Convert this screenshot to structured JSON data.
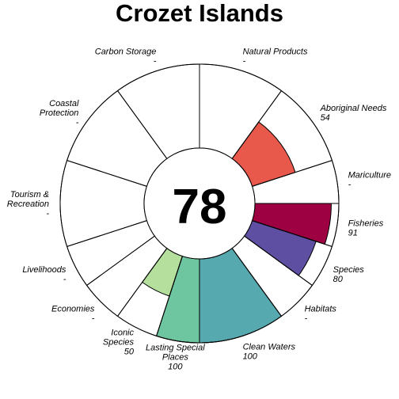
{
  "chart_data": {
    "type": "flower",
    "title": "Crozet Islands",
    "score": "78",
    "value_range": [
      0,
      100
    ],
    "petals": [
      {
        "name": "Natural Products",
        "name_lines": [
          "Natural Products"
        ],
        "value": null,
        "value_label": "-",
        "color": "#ffffff",
        "weight": 1
      },
      {
        "name": "Aboriginal Needs",
        "name_lines": [
          "Aboriginal Needs"
        ],
        "value": 54,
        "value_label": "54",
        "color": "#e8594c",
        "weight": 1
      },
      {
        "name": "Mariculture",
        "name_lines": [
          "Mariculture"
        ],
        "value": null,
        "value_label": "-",
        "color": "#ffffff",
        "weight": 0.5
      },
      {
        "name": "Fisheries",
        "name_lines": [
          "Fisheries"
        ],
        "value": 91,
        "value_label": "91",
        "color": "#9e0142",
        "weight": 0.5
      },
      {
        "name": "Species",
        "name_lines": [
          "Species"
        ],
        "value": 80,
        "value_label": "80",
        "color": "#5e4fa2",
        "weight": 0.5
      },
      {
        "name": "Habitats",
        "name_lines": [
          "Habitats"
        ],
        "value": null,
        "value_label": "-",
        "color": "#ffffff",
        "weight": 0.5
      },
      {
        "name": "Clean Waters",
        "name_lines": [
          "Clean Waters"
        ],
        "value": 100,
        "value_label": "100",
        "color": "#56aaaf",
        "weight": 1
      },
      {
        "name": "Lasting Special Places",
        "name_lines": [
          "Lasting Special",
          "Places"
        ],
        "value": 100,
        "value_label": "100",
        "color": "#6ec6a0",
        "weight": 0.5
      },
      {
        "name": "Iconic Species",
        "name_lines": [
          "Iconic",
          "Species"
        ],
        "value": 50,
        "value_label": "50",
        "color": "#b4df9c",
        "weight": 0.5
      },
      {
        "name": "Economies",
        "name_lines": [
          "Economies"
        ],
        "value": null,
        "value_label": "-",
        "color": "#ffffff",
        "weight": 0.5
      },
      {
        "name": "Livelihoods",
        "name_lines": [
          "Livelihoods"
        ],
        "value": null,
        "value_label": "-",
        "color": "#ffffff",
        "weight": 0.5
      },
      {
        "name": "Tourism & Recreation",
        "name_lines": [
          "Tourism &",
          "Recreation"
        ],
        "value": null,
        "value_label": "-",
        "color": "#ffffff",
        "weight": 1
      },
      {
        "name": "Coastal Protection",
        "name_lines": [
          "Coastal",
          "Protection"
        ],
        "value": null,
        "value_label": "-",
        "color": "#ffffff",
        "weight": 1
      },
      {
        "name": "Carbon Storage",
        "name_lines": [
          "Carbon Storage"
        ],
        "value": null,
        "value_label": "-",
        "color": "#ffffff",
        "weight": 1
      }
    ]
  }
}
